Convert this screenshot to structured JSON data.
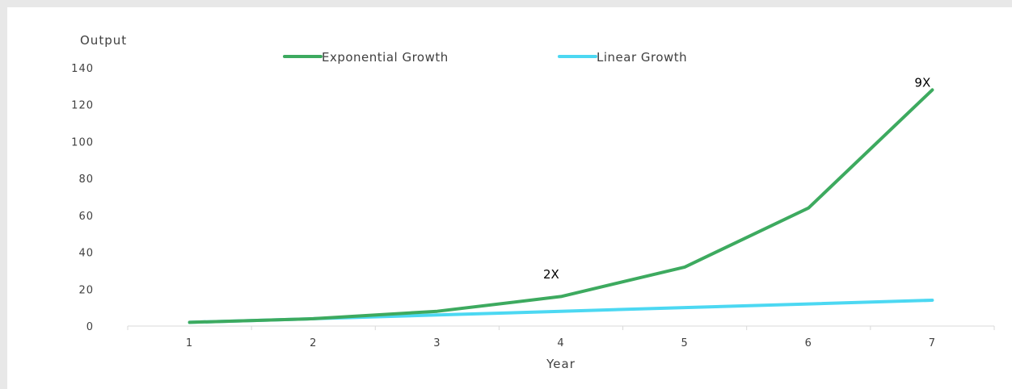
{
  "chart_data": {
    "type": "line",
    "xlabel": "Year",
    "ylabel": "Output",
    "x": [
      1,
      2,
      3,
      4,
      5,
      6,
      7
    ],
    "ylim": [
      0,
      140
    ],
    "yticks": [
      0,
      20,
      40,
      60,
      80,
      100,
      120,
      140
    ],
    "grid": false,
    "legend_position": "top",
    "series": [
      {
        "name": "Exponential Growth",
        "color": "#3daa5f",
        "values": [
          2,
          4,
          8,
          16,
          32,
          64,
          128
        ]
      },
      {
        "name": "Linear Growth",
        "color": "#4cd8f2",
        "values": [
          2,
          4,
          6,
          8,
          10,
          12,
          14
        ]
      }
    ],
    "annotations": [
      {
        "text": "2X",
        "x": 4,
        "y": 28
      },
      {
        "text": "9X",
        "x": 7,
        "y": 132
      }
    ]
  }
}
